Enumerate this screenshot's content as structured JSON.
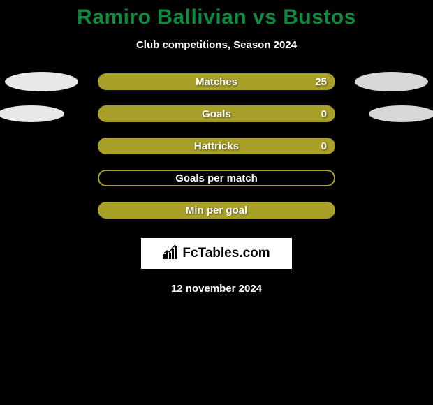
{
  "title": "Ramiro Ballivian vs Bustos",
  "subtitle": "Club competitions, Season 2024",
  "date": "12 november 2024",
  "logo_text": "FcTables.com",
  "colors": {
    "title": "#0d8b3f",
    "background": "#000000",
    "text": "#ffffff",
    "marker_left": "#e8e8e8",
    "marker_right": "#d8d8d8",
    "bar_outline": "#a8a028",
    "bar_fill": "#a8a028"
  },
  "stats": [
    {
      "label": "Matches",
      "value": "25",
      "show_left_marker": true,
      "show_right_marker": true,
      "marker_small": false,
      "bar_bg": "#a8a028",
      "left_fill": 0,
      "right_fill": 0
    },
    {
      "label": "Goals",
      "value": "0",
      "show_left_marker": true,
      "show_right_marker": true,
      "marker_small": true,
      "bar_bg": "#a8a028",
      "left_fill": 0,
      "right_fill": 0
    },
    {
      "label": "Hattricks",
      "value": "0",
      "show_left_marker": false,
      "show_right_marker": false,
      "marker_small": false,
      "bar_bg": "#a8a028",
      "left_fill": 0,
      "right_fill": 0
    },
    {
      "label": "Goals per match",
      "value": "",
      "show_left_marker": false,
      "show_right_marker": false,
      "marker_small": false,
      "bar_bg": "transparent",
      "bar_border": "#a8a028",
      "left_fill": 0,
      "right_fill": 0
    },
    {
      "label": "Min per goal",
      "value": "",
      "show_left_marker": false,
      "show_right_marker": false,
      "marker_small": false,
      "bar_bg": "#a8a028",
      "left_fill": 0,
      "right_fill": 0
    }
  ]
}
